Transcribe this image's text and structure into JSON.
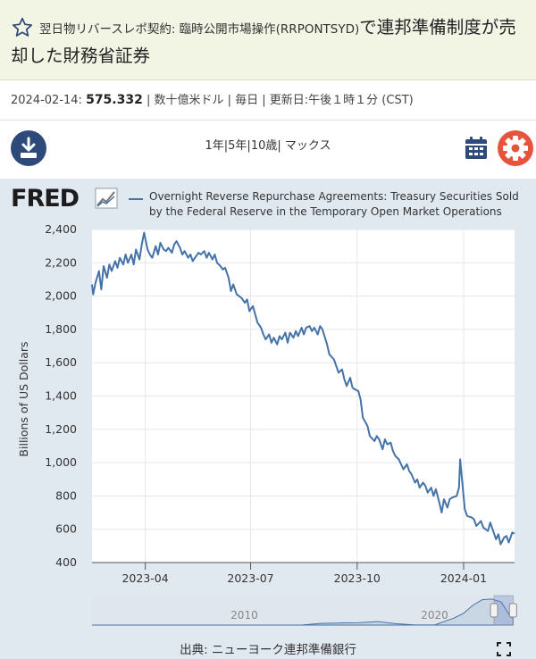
{
  "header": {
    "title_small": "翌日物リバースレポ契約: 臨時公開市場操作(RRPONTSYD)",
    "title_big_a": "で連邦準備制度が売",
    "title_big_b": "却した財務省証券",
    "star_icon": "star-outline-icon"
  },
  "meta": {
    "date": "2024-02-14:",
    "value": "575.332",
    "rest": "| 数十億米ドル | 毎日 | 更新日:午後１時１分 (CST)"
  },
  "toolbar": {
    "range_1y": "1年",
    "range_5y": "5年",
    "range_10y": "10歳",
    "range_max": "マックス",
    "sep": "|",
    "download_icon": "download-icon",
    "calendar_icon": "calendar-icon",
    "settings_icon": "gear-icon"
  },
  "colors": {
    "line": "#4572a7",
    "plot_bg": "#ffffff",
    "panel_bg": "#e1e9f0",
    "accent_red": "#e6553b",
    "accent_navy": "#2e4a7a"
  },
  "brand": {
    "logo": "FRED"
  },
  "source": {
    "label": "出典: ニューヨーク連邦準備銀行"
  },
  "chart_data": {
    "type": "line",
    "ylabel": "Billions of US Dollars",
    "xlabel": "",
    "ylim": [
      400,
      2400
    ],
    "yticks": [
      400,
      600,
      800,
      1000,
      1200,
      1400,
      1600,
      1800,
      2000,
      2200,
      2400
    ],
    "ytick_labels": [
      "400",
      "600",
      "800",
      "1,000",
      "1,200",
      "1,400",
      "1,600",
      "1,800",
      "2,000",
      "2,200",
      "2,400"
    ],
    "xlim": [
      "2023-02-14",
      "2024-02-14"
    ],
    "xticks": [
      {
        "date": "2023-04-01",
        "label": "2023-04"
      },
      {
        "date": "2023-07-01",
        "label": "2023-07"
      },
      {
        "date": "2023-10-01",
        "label": "2023-10"
      },
      {
        "date": "2024-01-01",
        "label": "2024-01"
      }
    ],
    "grid": true,
    "legend": "top",
    "series": [
      {
        "name": "Overnight Reverse Repurchase Agreements: Treasury Securities Sold by the Federal Reserve in the Temporary Open Market Operations",
        "points": [
          [
            "2023-02-14",
            2070
          ],
          [
            "2023-02-15",
            2010
          ],
          [
            "2023-02-17",
            2080
          ],
          [
            "2023-02-20",
            2150
          ],
          [
            "2023-02-22",
            2040
          ],
          [
            "2023-02-24",
            2180
          ],
          [
            "2023-02-27",
            2110
          ],
          [
            "2023-03-01",
            2190
          ],
          [
            "2023-03-03",
            2150
          ],
          [
            "2023-03-06",
            2210
          ],
          [
            "2023-03-08",
            2170
          ],
          [
            "2023-03-10",
            2230
          ],
          [
            "2023-03-13",
            2190
          ],
          [
            "2023-03-15",
            2250
          ],
          [
            "2023-03-17",
            2200
          ],
          [
            "2023-03-20",
            2250
          ],
          [
            "2023-03-22",
            2190
          ],
          [
            "2023-03-24",
            2280
          ],
          [
            "2023-03-27",
            2220
          ],
          [
            "2023-03-29",
            2310
          ],
          [
            "2023-03-31",
            2380
          ],
          [
            "2023-04-03",
            2280
          ],
          [
            "2023-04-05",
            2250
          ],
          [
            "2023-04-07",
            2230
          ],
          [
            "2023-04-10",
            2300
          ],
          [
            "2023-04-12",
            2250
          ],
          [
            "2023-04-14",
            2320
          ],
          [
            "2023-04-17",
            2280
          ],
          [
            "2023-04-19",
            2270
          ],
          [
            "2023-04-21",
            2290
          ],
          [
            "2023-04-24",
            2260
          ],
          [
            "2023-04-26",
            2310
          ],
          [
            "2023-04-28",
            2330
          ],
          [
            "2023-05-01",
            2290
          ],
          [
            "2023-05-03",
            2250
          ],
          [
            "2023-05-05",
            2270
          ],
          [
            "2023-05-08",
            2230
          ],
          [
            "2023-05-10",
            2250
          ],
          [
            "2023-05-12",
            2210
          ],
          [
            "2023-05-15",
            2240
          ],
          [
            "2023-05-17",
            2260
          ],
          [
            "2023-05-19",
            2250
          ],
          [
            "2023-05-22",
            2270
          ],
          [
            "2023-05-24",
            2230
          ],
          [
            "2023-05-26",
            2260
          ],
          [
            "2023-05-29",
            2220
          ],
          [
            "2023-05-31",
            2250
          ],
          [
            "2023-06-02",
            2200
          ],
          [
            "2023-06-05",
            2180
          ],
          [
            "2023-06-07",
            2160
          ],
          [
            "2023-06-09",
            2170
          ],
          [
            "2023-06-12",
            2110
          ],
          [
            "2023-06-14",
            2030
          ],
          [
            "2023-06-16",
            2070
          ],
          [
            "2023-06-19",
            2010
          ],
          [
            "2023-06-21",
            2000
          ],
          [
            "2023-06-23",
            1990
          ],
          [
            "2023-06-26",
            1960
          ],
          [
            "2023-06-28",
            1980
          ],
          [
            "2023-06-30",
            1910
          ],
          [
            "2023-07-03",
            1940
          ],
          [
            "2023-07-05",
            1890
          ],
          [
            "2023-07-07",
            1840
          ],
          [
            "2023-07-10",
            1810
          ],
          [
            "2023-07-12",
            1770
          ],
          [
            "2023-07-14",
            1740
          ],
          [
            "2023-07-17",
            1770
          ],
          [
            "2023-07-19",
            1720
          ],
          [
            "2023-07-21",
            1750
          ],
          [
            "2023-07-24",
            1710
          ],
          [
            "2023-07-26",
            1760
          ],
          [
            "2023-07-28",
            1740
          ],
          [
            "2023-07-31",
            1780
          ],
          [
            "2023-08-02",
            1720
          ],
          [
            "2023-08-04",
            1780
          ],
          [
            "2023-08-07",
            1750
          ],
          [
            "2023-08-09",
            1790
          ],
          [
            "2023-08-11",
            1760
          ],
          [
            "2023-08-14",
            1810
          ],
          [
            "2023-08-16",
            1770
          ],
          [
            "2023-08-18",
            1810
          ],
          [
            "2023-08-21",
            1820
          ],
          [
            "2023-08-23",
            1790
          ],
          [
            "2023-08-25",
            1810
          ],
          [
            "2023-08-28",
            1770
          ],
          [
            "2023-08-30",
            1820
          ],
          [
            "2023-09-01",
            1800
          ],
          [
            "2023-09-05",
            1710
          ],
          [
            "2023-09-07",
            1650
          ],
          [
            "2023-09-11",
            1620
          ],
          [
            "2023-09-13",
            1580
          ],
          [
            "2023-09-15",
            1540
          ],
          [
            "2023-09-18",
            1560
          ],
          [
            "2023-09-20",
            1500
          ],
          [
            "2023-09-22",
            1460
          ],
          [
            "2023-09-25",
            1510
          ],
          [
            "2023-09-27",
            1450
          ],
          [
            "2023-09-29",
            1440
          ],
          [
            "2023-10-02",
            1430
          ],
          [
            "2023-10-04",
            1380
          ],
          [
            "2023-10-06",
            1270
          ],
          [
            "2023-10-10",
            1220
          ],
          [
            "2023-10-12",
            1160
          ],
          [
            "2023-10-16",
            1130
          ],
          [
            "2023-10-18",
            1160
          ],
          [
            "2023-10-20",
            1140
          ],
          [
            "2023-10-23",
            1080
          ],
          [
            "2023-10-25",
            1140
          ],
          [
            "2023-10-27",
            1110
          ],
          [
            "2023-10-30",
            1120
          ],
          [
            "2023-11-01",
            1070
          ],
          [
            "2023-11-03",
            1040
          ],
          [
            "2023-11-06",
            1020
          ],
          [
            "2023-11-08",
            990
          ],
          [
            "2023-11-10",
            960
          ],
          [
            "2023-11-13",
            990
          ],
          [
            "2023-11-15",
            950
          ],
          [
            "2023-11-17",
            930
          ],
          [
            "2023-11-20",
            880
          ],
          [
            "2023-11-22",
            900
          ],
          [
            "2023-11-24",
            850
          ],
          [
            "2023-11-27",
            880
          ],
          [
            "2023-11-29",
            860
          ],
          [
            "2023-12-01",
            820
          ],
          [
            "2023-12-04",
            850
          ],
          [
            "2023-12-06",
            800
          ],
          [
            "2023-12-08",
            840
          ],
          [
            "2023-12-11",
            760
          ],
          [
            "2023-12-13",
            700
          ],
          [
            "2023-12-15",
            780
          ],
          [
            "2023-12-18",
            730
          ],
          [
            "2023-12-20",
            780
          ],
          [
            "2023-12-22",
            790
          ],
          [
            "2023-12-26",
            800
          ],
          [
            "2023-12-28",
            850
          ],
          [
            "2023-12-29",
            1020
          ],
          [
            "2024-01-02",
            720
          ],
          [
            "2024-01-04",
            680
          ],
          [
            "2024-01-08",
            670
          ],
          [
            "2024-01-10",
            660
          ],
          [
            "2024-01-12",
            620
          ],
          [
            "2024-01-16",
            650
          ],
          [
            "2024-01-18",
            610
          ],
          [
            "2024-01-22",
            590
          ],
          [
            "2024-01-24",
            640
          ],
          [
            "2024-01-26",
            600
          ],
          [
            "2024-01-29",
            540
          ],
          [
            "2024-01-31",
            570
          ],
          [
            "2024-02-02",
            510
          ],
          [
            "2024-02-05",
            550
          ],
          [
            "2024-02-07",
            560
          ],
          [
            "2024-02-09",
            520
          ],
          [
            "2024-02-12",
            580
          ],
          [
            "2024-02-14",
            575
          ]
        ]
      }
    ],
    "navigator": {
      "labels": [
        {
          "year": 2010,
          "label": "2010"
        },
        {
          "year": 2020,
          "label": "2020"
        }
      ],
      "xlim": [
        2002,
        2024.2
      ],
      "selected": [
        2023.12,
        2024.12
      ],
      "overview": [
        [
          2002,
          0
        ],
        [
          2013,
          2
        ],
        [
          2014,
          150
        ],
        [
          2015,
          180
        ],
        [
          2016,
          200
        ],
        [
          2017,
          300
        ],
        [
          2018,
          120
        ],
        [
          2019,
          5
        ],
        [
          2020,
          10
        ],
        [
          2021,
          600
        ],
        [
          2021.5,
          1000
        ],
        [
          2022,
          1700
        ],
        [
          2022.5,
          2200
        ],
        [
          2023,
          2250
        ],
        [
          2023.5,
          2000
        ],
        [
          2024,
          700
        ],
        [
          2024.12,
          575
        ]
      ]
    }
  }
}
